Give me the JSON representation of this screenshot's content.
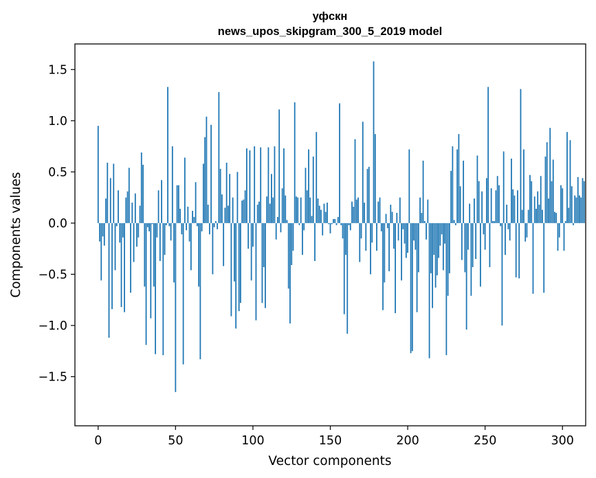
{
  "chart_data": {
    "type": "bar",
    "title_line1": "уфскн",
    "title_line2": "news_upos_skipgram_300_5_2019 model",
    "xlabel": "Vector components",
    "ylabel": "Components values",
    "xlim": [
      -15,
      315
    ],
    "ylim": [
      -1.98,
      1.75
    ],
    "xticks": [
      0,
      50,
      100,
      150,
      200,
      250,
      300
    ],
    "xtick_labels": [
      "0",
      "50",
      "100",
      "150",
      "200",
      "250",
      "300"
    ],
    "yticks": [
      -1.5,
      -1.0,
      -0.5,
      0.0,
      0.5,
      1.0,
      1.5
    ],
    "ytick_labels": [
      "−1.5",
      "−1.0",
      "−0.5",
      "0.0",
      "0.5",
      "1.0",
      "1.5"
    ],
    "bar_color": "#1f77b4",
    "values": [
      0.95,
      -0.18,
      -0.56,
      -0.13,
      -0.22,
      0.24,
      0.59,
      -1.12,
      0.44,
      -0.84,
      0.58,
      -0.46,
      -0.03,
      0.32,
      -0.19,
      -0.82,
      -0.14,
      -0.87,
      0.25,
      0.31,
      0.54,
      -0.68,
      0.2,
      -0.38,
      0.29,
      -0.23,
      -0.14,
      0.17,
      0.69,
      0.57,
      -0.62,
      -1.19,
      -0.04,
      -0.08,
      -0.93,
      -0.01,
      -0.62,
      -1.28,
      -0.14,
      0.32,
      -0.37,
      0.42,
      -1.29,
      -0.31,
      -0.02,
      1.33,
      -0.03,
      -0.17,
      0.75,
      -0.58,
      -1.65,
      0.37,
      0.37,
      0.14,
      -0.11,
      -1.38,
      0.64,
      -0.07,
      0.16,
      -0.18,
      -0.46,
      0.12,
      0.06,
      0.4,
      -0.03,
      -0.62,
      -1.33,
      -0.08,
      0.58,
      0.84,
      1.04,
      0.18,
      -0.11,
      0.96,
      -0.5,
      -0.04,
      0.02,
      -0.06,
      1.28,
      0.53,
      0.28,
      -0.42,
      0.15,
      0.59,
      0.17,
      0.48,
      -0.91,
      0.25,
      -0.57,
      -1.03,
      0.5,
      -0.86,
      -0.78,
      0.22,
      0.23,
      0.32,
      0.73,
      -0.25,
      0.71,
      -0.56,
      -0.23,
      0.75,
      -0.95,
      0.18,
      0.21,
      0.74,
      -0.78,
      -0.43,
      -0.83,
      0.26,
      0.74,
      0.19,
      0.48,
      0.25,
      0.75,
      -0.16,
      0.06,
      1.11,
      -0.09,
      0.34,
      0.73,
      0.27,
      0.03,
      -0.64,
      -0.98,
      -0.41,
      -0.27,
      1.18,
      0.26,
      0.25,
      -0.02,
      0.25,
      -0.31,
      -0.07,
      0.54,
      0.32,
      0.72,
      0.25,
      0.07,
      0.65,
      -0.37,
      0.89,
      0.24,
      0.17,
      0.13,
      -0.12,
      0.19,
      0.11,
      0.2,
      -0.01,
      -0.1,
      -0.01,
      0.04,
      0.04,
      -0.02,
      0.06,
      1.17,
      -0.02,
      -0.15,
      -0.89,
      -0.31,
      -1.08,
      -0.02,
      -0.07,
      0.21,
      0.16,
      0.82,
      0.23,
      0.25,
      -0.38,
      -0.15,
      0.99,
      0.2,
      -0.27,
      0.53,
      0.55,
      -0.5,
      -0.19,
      1.58,
      0.87,
      -0.27,
      0.21,
      0.25,
      -0.08,
      -0.85,
      -0.58,
      0.09,
      -0.05,
      -0.47,
      0.18,
      0.11,
      -0.25,
      -0.88,
      0.1,
      -0.17,
      0.25,
      -0.56,
      -0.06,
      -0.2,
      -0.34,
      -0.29,
      0.72,
      -1.27,
      -1.25,
      -0.17,
      -0.26,
      -0.87,
      -0.48,
      0.25,
      0.1,
      0.61,
      0.02,
      -0.16,
      0.23,
      -1.32,
      -0.49,
      -0.83,
      -0.31,
      -0.63,
      -0.51,
      -0.34,
      -0.22,
      -0.11,
      -0.46,
      -0.2,
      -1.29,
      -0.71,
      -0.49,
      0.51,
      0.75,
      0.03,
      -0.02,
      0.72,
      0.87,
      0.36,
      -0.36,
      0.61,
      -0.48,
      -1.04,
      -0.26,
      0.19,
      -0.71,
      -0.43,
      0.24,
      -0.35,
      0.66,
      0.41,
      -0.62,
      0.31,
      -0.11,
      -0.26,
      0.44,
      1.33,
      -0.43,
      0.34,
      0.02,
      0.02,
      0.32,
      0.46,
      0.37,
      -0.03,
      -1.0,
      0.7,
      -0.31,
      0.18,
      -0.06,
      -0.17,
      0.63,
      0.33,
      0.27,
      -0.53,
      0.32,
      -0.54,
      1.31,
      0.13,
      0.72,
      -0.18,
      -0.14,
      0.13,
      0.47,
      0.41,
      -0.69,
      0.26,
      0.14,
      0.31,
      0.18,
      0.46,
      0.13,
      -0.68,
      0.65,
      0.79,
      0.24,
      0.93,
      0.41,
      0.62,
      0.11,
      0.1,
      -0.27,
      -0.14,
      0.37,
      0.34,
      -0.27,
      0.02,
      0.89,
      0.15,
      0.81,
      0.36,
      -0.02,
      0.27,
      0.25,
      0.45,
      0.27,
      0.25,
      0.44,
      0.41
    ]
  }
}
